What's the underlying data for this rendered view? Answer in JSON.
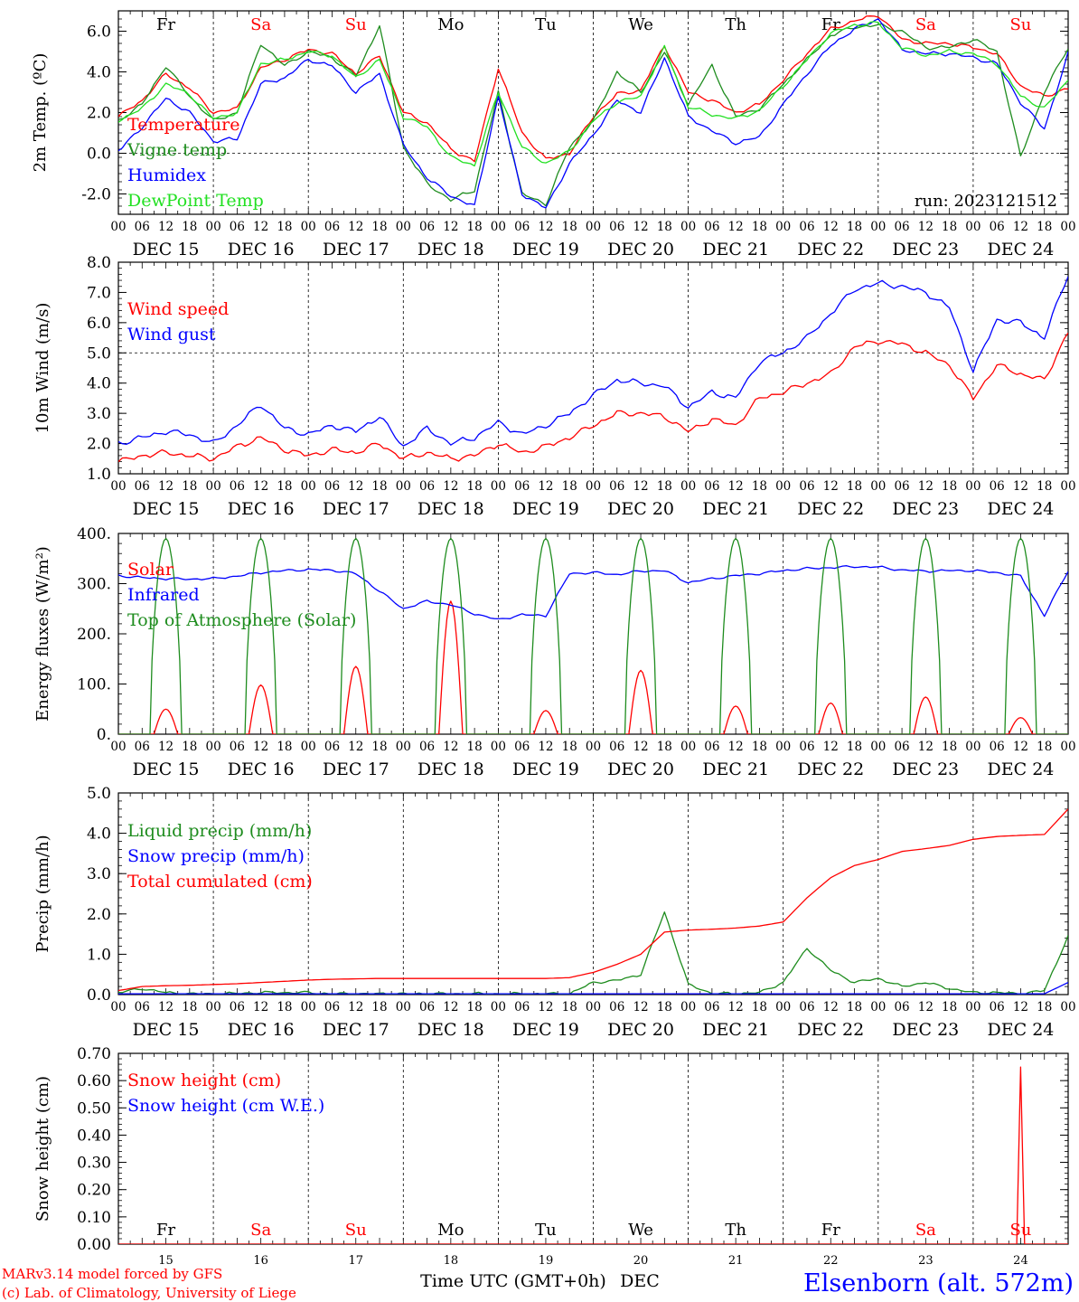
{
  "run_label": "run: 2023121512",
  "x_tick_labels": [
    "00",
    "06",
    "12",
    "18"
  ],
  "day_labels": [
    "DEC 15",
    "DEC 16",
    "DEC 17",
    "DEC 18",
    "DEC 19",
    "DEC 20",
    "DEC 21",
    "DEC 22",
    "DEC 23",
    "DEC 24"
  ],
  "weekday_labels": [
    {
      "text": "Fr",
      "color": "#000000"
    },
    {
      "text": "Sa",
      "color": "#ff0000"
    },
    {
      "text": "Su",
      "color": "#ff0000"
    },
    {
      "text": "Mo",
      "color": "#000000"
    },
    {
      "text": "Tu",
      "color": "#000000"
    },
    {
      "text": "We",
      "color": "#000000"
    },
    {
      "text": "Th",
      "color": "#000000"
    },
    {
      "text": "Fr",
      "color": "#000000"
    },
    {
      "text": "Sa",
      "color": "#ff0000"
    },
    {
      "text": "Su",
      "color": "#ff0000"
    }
  ],
  "bottom_day_numbers": [
    "15",
    "16",
    "17",
    "18",
    "19",
    "20",
    "21",
    "22",
    "23",
    "24"
  ],
  "bottom_axis_title": "Time UTC (GMT+0h)",
  "bottom_month": "DEC",
  "footer": {
    "model_line": "MARv3.14 model forced by GFS",
    "lab_line": "(c) Lab. of Climatology, University of Liege",
    "station": "Elsenborn (alt. 572m)"
  },
  "colors": {
    "red": "#ff0000",
    "dark_green": "#1e8c1e",
    "blue": "#0000ff",
    "light_green": "#22e022"
  },
  "chart_data": [
    {
      "id": "temp",
      "type": "line",
      "ylabel": "2m Temp. (ºC)",
      "ylim": [
        -3.0,
        7.0
      ],
      "ticks": [
        -2.0,
        0.0,
        2.0,
        4.0,
        6.0
      ],
      "tick_labels": [
        "-2.0",
        "0.0",
        "2.0",
        "4.0",
        "6.0"
      ],
      "ref_line": 0.0,
      "x_hours": [
        0,
        6,
        12,
        18,
        24,
        30,
        36,
        42,
        48,
        54,
        60,
        66,
        72,
        78,
        84,
        90,
        96,
        102,
        108,
        114,
        120,
        126,
        132,
        138,
        144,
        150,
        156,
        162,
        168,
        174,
        180,
        186,
        192,
        198,
        204,
        210,
        216,
        222,
        228,
        234,
        240
      ],
      "series": [
        {
          "name": "Temperature",
          "color": "#ff0000",
          "values": [
            1.8,
            2.6,
            3.9,
            3.2,
            2.0,
            2.2,
            4.2,
            4.6,
            5.1,
            4.9,
            3.9,
            4.8,
            2.0,
            1.5,
            0.2,
            -0.4,
            4.2,
            1.0,
            -0.3,
            0.0,
            1.8,
            2.9,
            3.1,
            5.3,
            3.0,
            2.6,
            2.0,
            2.4,
            3.6,
            4.9,
            6.1,
            6.5,
            6.8,
            5.6,
            5.4,
            5.4,
            5.2,
            4.9,
            3.3,
            2.8,
            3.2
          ]
        },
        {
          "name": "Vigne temp",
          "color": "#1e8c1e",
          "values": [
            1.6,
            2.4,
            4.3,
            2.8,
            1.6,
            2.0,
            5.4,
            4.3,
            5.0,
            4.7,
            3.8,
            6.3,
            0.3,
            -1.5,
            -2.3,
            -1.8,
            3.0,
            -2.0,
            -2.5,
            0.3,
            1.6,
            4.0,
            3.0,
            5.0,
            2.4,
            4.3,
            1.8,
            2.2,
            3.4,
            4.6,
            5.8,
            6.2,
            6.3,
            6.0,
            5.2,
            5.2,
            5.6,
            5.0,
            -0.2,
            3.0,
            5.2
          ]
        },
        {
          "name": "Humidex",
          "color": "#0000ff",
          "values": [
            0.1,
            1.3,
            2.7,
            2.0,
            0.6,
            0.7,
            3.4,
            3.7,
            4.6,
            4.3,
            3.0,
            3.9,
            0.4,
            -1.2,
            -2.1,
            -2.6,
            2.8,
            -2.0,
            -2.7,
            -0.5,
            0.9,
            2.6,
            2.0,
            4.7,
            1.8,
            1.1,
            0.5,
            0.8,
            2.4,
            3.9,
            5.3,
            6.1,
            6.6,
            5.1,
            4.9,
            4.9,
            4.7,
            4.4,
            2.5,
            1.2,
            4.9
          ]
        },
        {
          "name": "DewPoint Temp",
          "color": "#22e022",
          "values": [
            1.6,
            2.2,
            3.4,
            2.9,
            1.7,
            2.0,
            4.4,
            4.6,
            5.0,
            4.8,
            3.7,
            4.6,
            1.8,
            1.3,
            -0.2,
            -0.6,
            3.0,
            0.3,
            -0.5,
            0.1,
            1.6,
            2.5,
            2.8,
            5.2,
            2.3,
            1.9,
            1.7,
            2.1,
            3.3,
            4.6,
            5.9,
            6.3,
            6.4,
            5.2,
            4.8,
            5.0,
            4.9,
            4.4,
            2.8,
            2.2,
            3.6
          ]
        }
      ],
      "legend": [
        "Temperature",
        "Vigne temp",
        "Humidex",
        "DewPoint Temp"
      ]
    },
    {
      "id": "wind",
      "type": "line",
      "ylabel": "10m Wind (m/s)",
      "ylim": [
        1.0,
        8.0
      ],
      "ticks": [
        1.0,
        2.0,
        3.0,
        4.0,
        5.0,
        6.0,
        7.0,
        8.0
      ],
      "tick_labels": [
        "1.0",
        "2.0",
        "3.0",
        "4.0",
        "5.0",
        "6.0",
        "7.0",
        "8.0"
      ],
      "ref_line": 5.0,
      "x_hours": [
        0,
        6,
        12,
        18,
        24,
        30,
        36,
        42,
        48,
        54,
        60,
        66,
        72,
        78,
        84,
        90,
        96,
        102,
        108,
        114,
        120,
        126,
        132,
        138,
        144,
        150,
        156,
        162,
        168,
        174,
        180,
        186,
        192,
        198,
        204,
        210,
        216,
        222,
        228,
        234,
        240
      ],
      "series": [
        {
          "name": "Wind speed",
          "color": "#ff0000",
          "values": [
            1.4,
            1.6,
            1.7,
            1.6,
            1.5,
            1.9,
            2.2,
            1.8,
            1.6,
            1.8,
            1.7,
            2.0,
            1.5,
            1.7,
            1.5,
            1.6,
            2.0,
            1.7,
            1.9,
            2.2,
            2.6,
            3.0,
            3.0,
            2.9,
            2.4,
            2.8,
            2.6,
            3.5,
            3.7,
            4.0,
            4.3,
            5.2,
            5.4,
            5.3,
            5.0,
            4.6,
            3.5,
            4.6,
            4.3,
            4.1,
            5.7
          ]
        },
        {
          "name": "Wind gust",
          "color": "#0000ff",
          "values": [
            2.0,
            2.2,
            2.4,
            2.3,
            2.0,
            2.6,
            3.3,
            2.5,
            2.3,
            2.6,
            2.4,
            2.9,
            1.9,
            2.5,
            2.0,
            2.2,
            2.7,
            2.3,
            2.6,
            3.0,
            3.6,
            4.1,
            4.0,
            3.9,
            3.2,
            3.7,
            3.5,
            4.7,
            5.0,
            5.5,
            6.3,
            7.1,
            7.3,
            7.2,
            7.0,
            6.5,
            4.4,
            6.1,
            6.0,
            5.5,
            7.6
          ]
        }
      ],
      "legend": [
        "Wind speed",
        "Wind gust"
      ]
    },
    {
      "id": "energy",
      "type": "line",
      "ylabel": "Energy fluxes (W/m²)",
      "ylim": [
        0,
        400
      ],
      "ticks": [
        0,
        100,
        200,
        300,
        400
      ],
      "tick_labels": [
        "0.",
        "100.",
        "200.",
        "300.",
        "400."
      ],
      "x_hours": [
        0,
        6,
        12,
        18,
        24,
        30,
        36,
        42,
        48,
        54,
        60,
        66,
        72,
        78,
        84,
        90,
        96,
        102,
        108,
        114,
        120,
        126,
        132,
        138,
        144,
        150,
        156,
        162,
        168,
        174,
        180,
        186,
        192,
        198,
        204,
        210,
        216,
        222,
        228,
        234,
        240
      ],
      "series": [
        {
          "name": "Solar",
          "color": "#ff0000",
          "peaks": [
            50,
            98,
            135,
            265,
            47,
            127,
            56,
            62,
            74,
            33
          ]
        },
        {
          "name": "Infrared",
          "color": "#0000ff",
          "values": [
            316,
            312,
            310,
            309,
            310,
            315,
            322,
            326,
            328,
            327,
            320,
            285,
            250,
            265,
            258,
            240,
            228,
            238,
            236,
            320,
            322,
            318,
            325,
            326,
            302,
            310,
            316,
            320,
            326,
            330,
            332,
            334,
            333,
            327,
            325,
            326,
            326,
            322,
            315,
            236,
            326
          ]
        },
        {
          "name": "Top of Atmosphere (Solar)",
          "color": "#1e8c1e",
          "peak": 390,
          "day_start_hour": 8,
          "day_end_hour": 16
        }
      ],
      "legend": [
        "Solar",
        "Infrared",
        "Top of Atmosphere (Solar)"
      ]
    },
    {
      "id": "precip",
      "type": "line",
      "ylabel": "Precip (mm/h)",
      "ylim": [
        0.0,
        5.0
      ],
      "ticks": [
        0.0,
        1.0,
        2.0,
        3.0,
        4.0,
        5.0
      ],
      "tick_labels": [
        "0.0",
        "1.0",
        "2.0",
        "3.0",
        "4.0",
        "5.0"
      ],
      "x_hours": [
        0,
        6,
        12,
        18,
        24,
        30,
        36,
        42,
        48,
        54,
        60,
        66,
        72,
        78,
        84,
        90,
        96,
        102,
        108,
        114,
        120,
        126,
        132,
        138,
        144,
        150,
        156,
        162,
        168,
        174,
        180,
        186,
        192,
        198,
        204,
        210,
        216,
        222,
        228,
        234,
        240
      ],
      "series": [
        {
          "name": "Liquid precip (mm/h)",
          "color": "#1e8c1e",
          "values": [
            0.05,
            0.15,
            0.05,
            0.02,
            0.02,
            0.03,
            0.05,
            0.05,
            0.05,
            0.02,
            0.02,
            0.02,
            0.02,
            0.02,
            0.02,
            0.02,
            0.02,
            0.02,
            0.02,
            0.02,
            0.3,
            0.35,
            0.5,
            2.05,
            0.25,
            0.03,
            0.02,
            0.05,
            0.3,
            1.15,
            0.6,
            0.3,
            0.4,
            0.2,
            0.3,
            0.15,
            0.05,
            0.05,
            0.02,
            0.1,
            1.45
          ]
        },
        {
          "name": "Snow precip (mm/h)",
          "color": "#0000ff",
          "values": [
            0.02,
            0.02,
            0.02,
            0.02,
            0.02,
            0.02,
            0.02,
            0.02,
            0.02,
            0.02,
            0.02,
            0.02,
            0.02,
            0.02,
            0.02,
            0.02,
            0.02,
            0.02,
            0.02,
            0.02,
            0.02,
            0.02,
            0.02,
            0.02,
            0.02,
            0.02,
            0.02,
            0.02,
            0.02,
            0.02,
            0.02,
            0.02,
            0.02,
            0.02,
            0.02,
            0.02,
            0.02,
            0.02,
            0.02,
            0.02,
            0.3
          ]
        },
        {
          "name": "Total cumulated (cm)",
          "color": "#ff0000",
          "values": [
            0.1,
            0.2,
            0.22,
            0.23,
            0.25,
            0.27,
            0.3,
            0.33,
            0.36,
            0.38,
            0.39,
            0.4,
            0.4,
            0.4,
            0.4,
            0.4,
            0.4,
            0.4,
            0.4,
            0.42,
            0.55,
            0.75,
            1.0,
            1.55,
            1.6,
            1.62,
            1.65,
            1.7,
            1.8,
            2.4,
            2.9,
            3.2,
            3.35,
            3.55,
            3.62,
            3.7,
            3.85,
            3.92,
            3.95,
            3.97,
            4.6
          ]
        }
      ],
      "legend": [
        "Liquid precip (mm/h)",
        "Snow precip (mm/h)",
        "Total cumulated (cm)"
      ]
    },
    {
      "id": "snow",
      "type": "line",
      "ylabel": "Snow height (cm)",
      "ylim": [
        0.0,
        0.7
      ],
      "ticks": [
        0.0,
        0.1,
        0.2,
        0.3,
        0.4,
        0.5,
        0.6,
        0.7
      ],
      "tick_labels": [
        "0.00",
        "0.10",
        "0.20",
        "0.30",
        "0.40",
        "0.50",
        "0.60",
        "0.70"
      ],
      "series": [
        {
          "name": "Snow height (cm)",
          "color": "#ff0000",
          "spike": {
            "start_hour": 227,
            "peak_hour": 228,
            "end_hour": 229,
            "value": 0.65
          }
        },
        {
          "name": "Snow height (cm W.E.)",
          "color": "#0000ff",
          "values": [
            0,
            0
          ]
        }
      ],
      "legend": [
        "Snow height (cm)",
        "Snow height (cm W.E.)"
      ]
    }
  ]
}
